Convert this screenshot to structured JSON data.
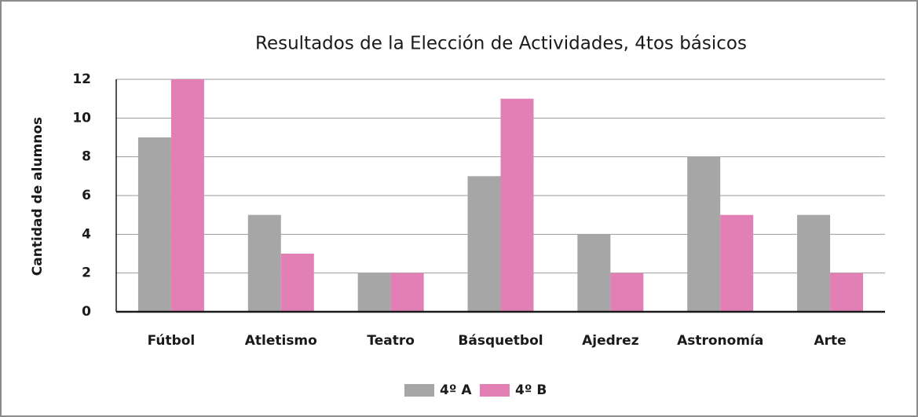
{
  "chart_data": {
    "type": "bar",
    "title": "Resultados de la Elección de Actividades, 4tos básicos",
    "y_label": "Cantidad de alumnos",
    "categories": [
      "Fútbol",
      "Atletismo",
      "Teatro",
      "Básquetbol",
      "Ajedrez",
      "Astronomía",
      "Arte"
    ],
    "series": [
      {
        "name": "4º A",
        "color": "#a6a6a7",
        "values": [
          9,
          5,
          2,
          7,
          4,
          8,
          5
        ]
      },
      {
        "name": "4º B",
        "color": "#e27fb4",
        "values": [
          12,
          3,
          2,
          11,
          2,
          5,
          2
        ]
      }
    ],
    "ylim": [
      0,
      12
    ],
    "yticks": [
      0,
      2,
      4,
      6,
      8,
      10,
      12
    ],
    "grid": true,
    "legend": "bottom"
  }
}
